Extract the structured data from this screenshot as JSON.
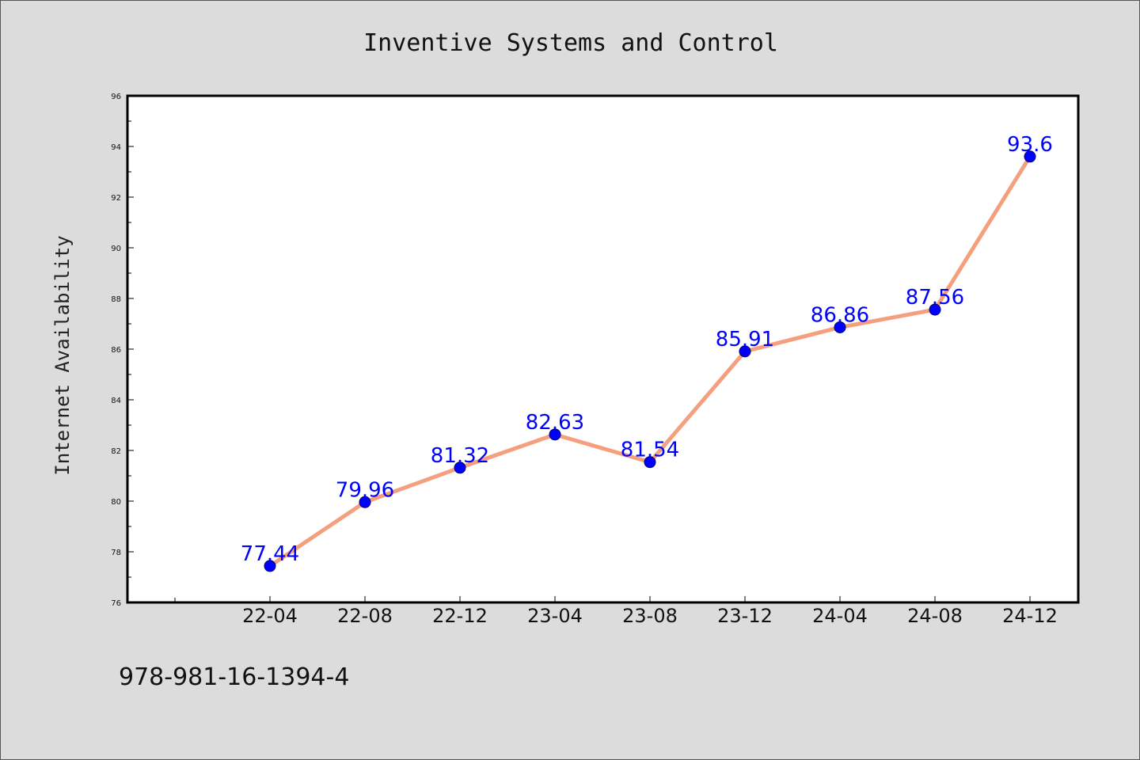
{
  "chart_data": {
    "type": "line",
    "title": "Inventive Systems and Control",
    "xlabel": "",
    "ylabel": "Internet Availability",
    "categories": [
      "22-04",
      "22-08",
      "22-12",
      "23-04",
      "23-08",
      "23-12",
      "24-04",
      "24-08",
      "24-12"
    ],
    "values": [
      77.44,
      79.96,
      81.32,
      82.63,
      81.54,
      85.91,
      86.86,
      87.56,
      93.6
    ],
    "data_labels": [
      "77.44",
      "79.96",
      "81.32",
      "82.63",
      "81.54",
      "85.91",
      "86.86",
      "87.56",
      "93.6"
    ],
    "ylim": [
      76,
      96
    ],
    "yticks": [
      76,
      78,
      80,
      82,
      84,
      86,
      88,
      90,
      92,
      94,
      96
    ],
    "grid": false,
    "legend": "none",
    "colors": {
      "line": "#f4a07e",
      "marker": "#0000ff",
      "data_label": "#0000ff",
      "background": "#dcdcdc",
      "plot_background": "#ffffff"
    }
  },
  "footnote": "978-981-16-1394-4"
}
